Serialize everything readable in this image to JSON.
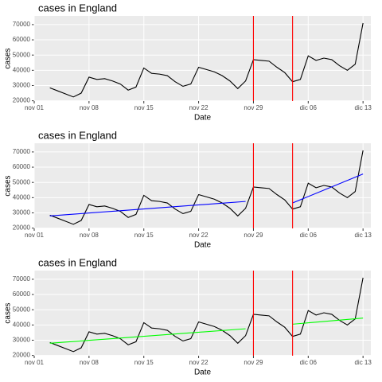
{
  "chart_data": [
    {
      "type": "line",
      "title": "cases in England",
      "xlabel": "Date",
      "ylabel": "cases",
      "x": [
        3,
        4,
        5,
        6,
        7,
        8,
        9,
        10,
        11,
        12,
        13,
        14,
        15,
        16,
        17,
        18,
        19,
        20,
        21,
        22,
        23,
        24,
        25,
        26,
        27,
        28,
        29,
        30,
        31,
        32,
        33,
        34,
        35,
        36,
        37,
        38,
        39,
        40,
        41,
        42,
        43
      ],
      "series": [
        {
          "color": "#000000",
          "values": [
            28500,
            26500,
            24500,
            22500,
            25000,
            35500,
            34000,
            34500,
            33000,
            31000,
            27000,
            29000,
            41500,
            38000,
            37500,
            36500,
            32500,
            29500,
            31000,
            42000,
            40500,
            39000,
            36500,
            33000,
            28000,
            33000,
            47000,
            46500,
            46000,
            42000,
            38500,
            32500,
            34000,
            49500,
            46500,
            48000,
            47000,
            43000,
            40000,
            44000,
            71000
          ]
        }
      ],
      "vlines": {
        "color": "#ff0000",
        "x": [
          29,
          34
        ]
      },
      "xlim": [
        1,
        44
      ],
      "ylim": [
        19800,
        75700
      ],
      "xticks": [
        {
          "value": 1,
          "label": "nov 01"
        },
        {
          "value": 8,
          "label": "nov 08"
        },
        {
          "value": 15,
          "label": "nov 15"
        },
        {
          "value": 22,
          "label": "nov 22"
        },
        {
          "value": 29,
          "label": "nov 29"
        },
        {
          "value": 36,
          "label": "dic 06"
        },
        {
          "value": 43,
          "label": "dic 13"
        }
      ],
      "yticks": [
        20000,
        30000,
        40000,
        50000,
        60000,
        70000
      ],
      "grid": true
    },
    {
      "type": "line",
      "title": "cases in England",
      "xlabel": "Date",
      "ylabel": "cases",
      "x": [
        3,
        4,
        5,
        6,
        7,
        8,
        9,
        10,
        11,
        12,
        13,
        14,
        15,
        16,
        17,
        18,
        19,
        20,
        21,
        22,
        23,
        24,
        25,
        26,
        27,
        28,
        29,
        30,
        31,
        32,
        33,
        34,
        35,
        36,
        37,
        38,
        39,
        40,
        41,
        42,
        43
      ],
      "series": [
        {
          "color": "#000000",
          "values": [
            28500,
            26500,
            24500,
            22500,
            25000,
            35500,
            34000,
            34500,
            33000,
            31000,
            27000,
            29000,
            41500,
            38000,
            37500,
            36500,
            32500,
            29500,
            31000,
            42000,
            40500,
            39000,
            36500,
            33000,
            28000,
            33000,
            47000,
            46500,
            46000,
            42000,
            38500,
            32500,
            34000,
            49500,
            46500,
            48000,
            47000,
            43000,
            40000,
            44000,
            71000
          ]
        }
      ],
      "trends": [
        {
          "color": "#0000ff",
          "x": [
            3,
            28
          ],
          "values": [
            28000,
            37500
          ]
        },
        {
          "color": "#0000ff",
          "x": [
            34,
            43
          ],
          "values": [
            36500,
            55500
          ]
        }
      ],
      "vlines": {
        "color": "#ff0000",
        "x": [
          29,
          34
        ]
      },
      "xlim": [
        1,
        44
      ],
      "ylim": [
        19800,
        75700
      ],
      "xticks": [
        {
          "value": 1,
          "label": "nov 01"
        },
        {
          "value": 8,
          "label": "nov 08"
        },
        {
          "value": 15,
          "label": "nov 15"
        },
        {
          "value": 22,
          "label": "nov 22"
        },
        {
          "value": 29,
          "label": "nov 29"
        },
        {
          "value": 36,
          "label": "dic 06"
        },
        {
          "value": 43,
          "label": "dic 13"
        }
      ],
      "yticks": [
        20000,
        30000,
        40000,
        50000,
        60000,
        70000
      ],
      "grid": true
    },
    {
      "type": "line",
      "title": "cases in England",
      "xlabel": "Date",
      "ylabel": "cases",
      "x": [
        3,
        4,
        5,
        6,
        7,
        8,
        9,
        10,
        11,
        12,
        13,
        14,
        15,
        16,
        17,
        18,
        19,
        20,
        21,
        22,
        23,
        24,
        25,
        26,
        27,
        28,
        29,
        30,
        31,
        32,
        33,
        34,
        35,
        36,
        37,
        38,
        39,
        40,
        41,
        42,
        43
      ],
      "series": [
        {
          "color": "#000000",
          "values": [
            28500,
            26500,
            24500,
            22500,
            25000,
            35500,
            34000,
            34500,
            33000,
            31000,
            27000,
            29000,
            41500,
            38000,
            37500,
            36500,
            32500,
            29500,
            31000,
            42000,
            40500,
            39000,
            36500,
            33000,
            28000,
            33000,
            47000,
            46500,
            46000,
            42000,
            38500,
            32500,
            34000,
            49500,
            46500,
            48000,
            47000,
            43000,
            40000,
            44000,
            71000
          ]
        }
      ],
      "trends": [
        {
          "color": "#00ff00",
          "x": [
            3,
            28
          ],
          "values": [
            28000,
            37500
          ]
        },
        {
          "color": "#00ff00",
          "x": [
            34,
            43
          ],
          "values": [
            40500,
            44500
          ]
        }
      ],
      "vlines": {
        "color": "#ff0000",
        "x": [
          29,
          34
        ]
      },
      "xlim": [
        1,
        44
      ],
      "ylim": [
        19800,
        75700
      ],
      "xticks": [
        {
          "value": 1,
          "label": "nov 01"
        },
        {
          "value": 8,
          "label": "nov 08"
        },
        {
          "value": 15,
          "label": "nov 15"
        },
        {
          "value": 22,
          "label": "nov 22"
        },
        {
          "value": 29,
          "label": "nov 29"
        },
        {
          "value": 36,
          "label": "dic 06"
        },
        {
          "value": 43,
          "label": "dic 13"
        }
      ],
      "yticks": [
        20000,
        30000,
        40000,
        50000,
        60000,
        70000
      ],
      "grid": true
    }
  ]
}
